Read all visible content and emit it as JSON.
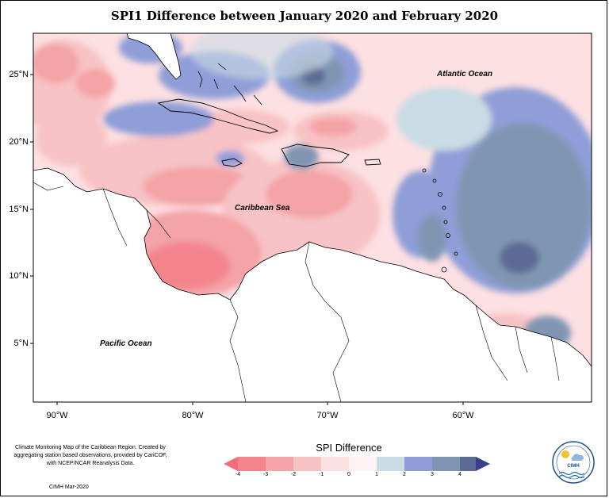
{
  "title": "SPI1 Difference between January 2020 and February 2020",
  "axes": {
    "lat_labels": [
      "25°N",
      "20°N",
      "15°N",
      "10°N",
      "5°N"
    ],
    "lon_labels": [
      "90°W",
      "80°W",
      "70°W",
      "60°W"
    ]
  },
  "labels": {
    "atlantic": "Atlantic Ocean",
    "caribbean": "Caribbean Sea",
    "pacific": "Pacific Ocean"
  },
  "legend": {
    "title": "SPI Difference",
    "ticks": [
      "-4",
      "-3",
      "-2",
      "-1",
      "0",
      "1",
      "2",
      "3",
      "4"
    ],
    "colors": [
      "#f3848c",
      "#f4a3a6",
      "#f7c3c5",
      "#fde0e2",
      "#fff4f4",
      "#c9dce4",
      "#8f9ed8",
      "#7f96b2",
      "#5c6b94"
    ],
    "end_left_color": "#f26d79",
    "end_right_color": "#3b3f8a"
  },
  "credit": {
    "text": "Climate Monitoring Map of the Caribbean Region. Created by aggregating station based observations, provided by CariCOF, with NCEP/NCAR Reanalysis Data.",
    "date": "CIMH Mar-2020"
  },
  "logo": {
    "name": "CIMH"
  }
}
